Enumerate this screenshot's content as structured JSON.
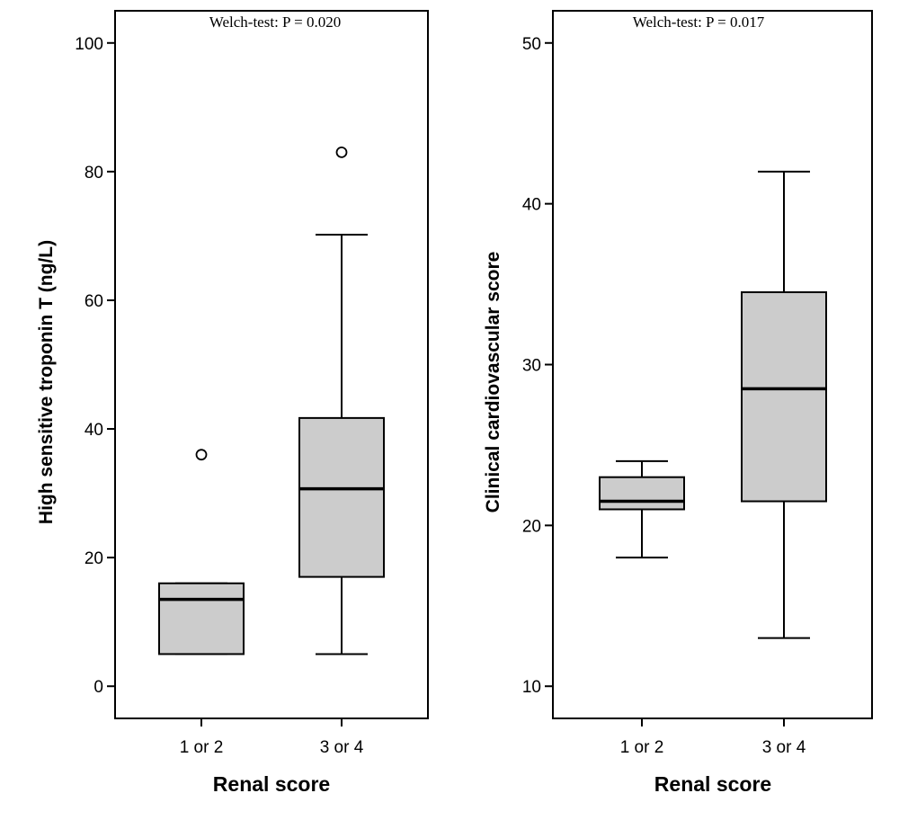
{
  "chart_data": [
    {
      "type": "box",
      "title": "Welch-test: P = 0.020",
      "xlabel": "Renal score",
      "ylabel": "High sensitive troponin T (ng/L)",
      "ylim": [
        -5,
        105
      ],
      "yticks": [
        0,
        20,
        40,
        60,
        80,
        100
      ],
      "categories": [
        "1 or 2",
        "3 or 4"
      ],
      "boxes": [
        {
          "whisker_low": 5,
          "q1": 5,
          "median": 13.5,
          "q3": 16,
          "whisker_high": 16,
          "outliers": [
            36
          ]
        },
        {
          "whisker_low": 5,
          "q1": 17,
          "median": 30.7,
          "q3": 41.7,
          "whisker_high": 70.2,
          "outliers": [
            83
          ]
        }
      ],
      "box_fill": "#cccccc"
    },
    {
      "type": "box",
      "title": "Welch-test: P = 0.017",
      "xlabel": "Renal score",
      "ylabel": "Clinical cardiovascular score",
      "ylim": [
        8,
        52
      ],
      "yticks": [
        10,
        20,
        30,
        40,
        50
      ],
      "categories": [
        "1 or 2",
        "3 or 4"
      ],
      "boxes": [
        {
          "whisker_low": 18,
          "q1": 21,
          "median": 21.5,
          "q3": 23,
          "whisker_high": 24,
          "outliers": []
        },
        {
          "whisker_low": 13,
          "q1": 21.5,
          "median": 28.5,
          "q3": 34.5,
          "whisker_high": 42,
          "outliers": []
        }
      ],
      "box_fill": "#cccccc"
    }
  ]
}
